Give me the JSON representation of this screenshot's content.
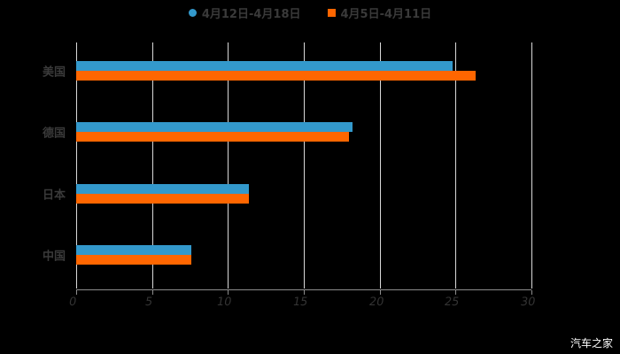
{
  "legend": [
    {
      "label": "4月12日-4月18日",
      "color": "#3399cc",
      "marker": "circle"
    },
    {
      "label": "4月5日-4月11日",
      "color": "#ff6600",
      "marker": "square"
    }
  ],
  "watermark": "汽车之家",
  "chart_data": {
    "type": "bar",
    "orientation": "horizontal",
    "title": "",
    "categories": [
      "美国",
      "德国",
      "日本",
      "中国"
    ],
    "series": [
      {
        "name": "4月12日-4月18日",
        "color": "#3399cc",
        "values": [
          24.8,
          18.2,
          11.4,
          7.6
        ]
      },
      {
        "name": "4月5日-4月11日",
        "color": "#ff6600",
        "values": [
          26.3,
          18.0,
          11.4,
          7.6
        ]
      }
    ],
    "xlabel": "",
    "ylabel": "",
    "xlim": [
      0,
      30
    ],
    "xticks": [
      "0",
      "5",
      "10",
      "15",
      "20",
      "25",
      "30"
    ],
    "grid": true,
    "legend_position": "top"
  }
}
